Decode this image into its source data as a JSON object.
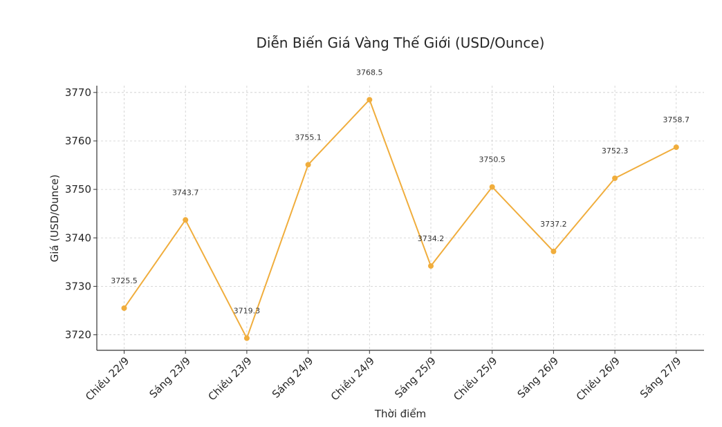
{
  "chart_data": {
    "type": "line",
    "title": "Diễn Biến Giá Vàng Thế Giới (USD/Ounce)",
    "xlabel": "Thời điểm",
    "ylabel": "Giá (USD/Ounce)",
    "categories": [
      "Chiều 22/9",
      "Sáng 23/9",
      "Chiều 23/9",
      "Sáng 24/9",
      "Chiều 24/9",
      "Sáng 25/9",
      "Chiều 25/9",
      "Sáng 26/9",
      "Chiều 26/9",
      "Sáng 27/9"
    ],
    "values": [
      3725.5,
      3743.7,
      3719.3,
      3755.1,
      3768.5,
      3734.2,
      3750.5,
      3737.2,
      3752.3,
      3758.7
    ],
    "data_labels": [
      "3725.5",
      "3743.7",
      "3719.3",
      "3755.1",
      "3768.5",
      "3734.2",
      "3750.5",
      "3737.2",
      "3752.3",
      "3758.7"
    ],
    "yticks": [
      3720,
      3730,
      3740,
      3750,
      3760,
      3770
    ],
    "ytick_labels": [
      "3720",
      "3730",
      "3740",
      "3750",
      "3760",
      "3770"
    ],
    "ylim": [
      3716.8,
      3771.4
    ],
    "grid": true,
    "line_color": "#f0ad3c",
    "marker_color": "#f0ad3c"
  }
}
